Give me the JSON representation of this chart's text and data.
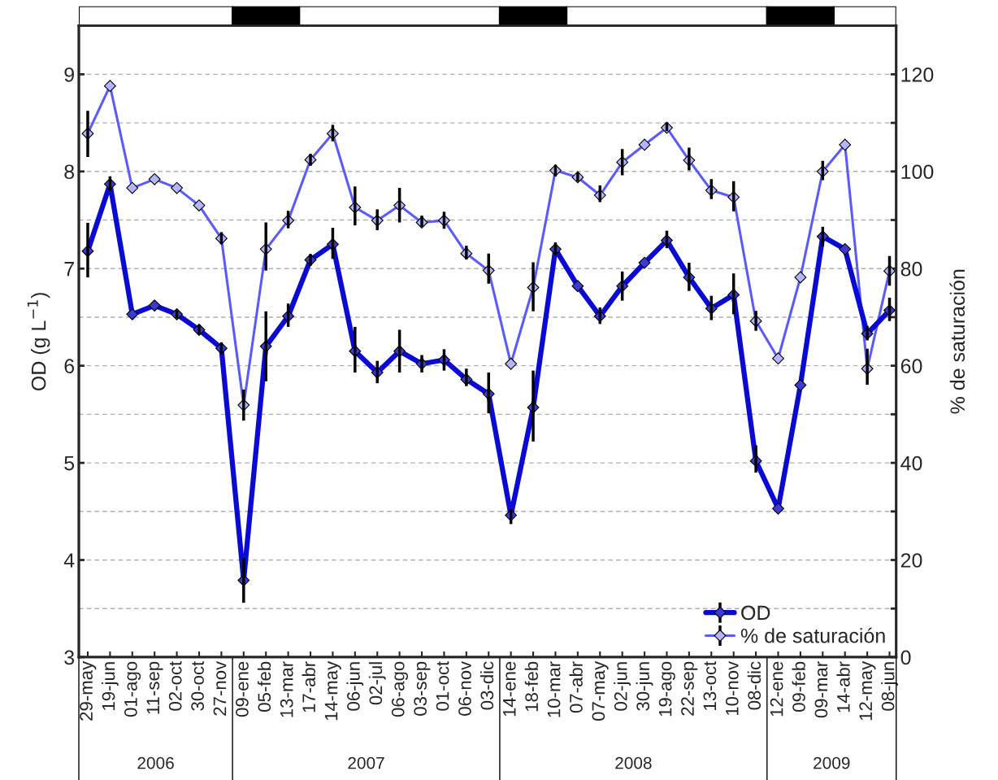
{
  "chart_data": {
    "type": "line",
    "xlabel": null,
    "ylabel": "OD (g L$^{−1}$)",
    "y2label": "% de saturación",
    "categories": [
      "29-may",
      "19-jun",
      "01-ago",
      "11-sep",
      "02-oct",
      "30-oct",
      "27-nov",
      "09-ene",
      "05-feb",
      "13-mar",
      "17-abr",
      "14-may",
      "06-jun",
      "02-jul",
      "06-ago",
      "03-sep",
      "01-oct",
      "06-nov",
      "03-dic",
      "14-ene",
      "18-feb",
      "10-mar",
      "07-abr",
      "07-may",
      "02-jun",
      "30-jun",
      "19-ago",
      "22-sep",
      "13-oct",
      "10-nov",
      "08-dic",
      "12-ene",
      "09-feb",
      "09-mar",
      "14-abr",
      "12-may",
      "08-jun"
    ],
    "series": [
      {
        "name": "OD",
        "color": "#0a0ad2",
        "axis": "y",
        "values": [
          7.18,
          7.87,
          6.53,
          6.62,
          6.53,
          6.37,
          6.18,
          3.79,
          6.2,
          6.51,
          7.09,
          7.25,
          6.15,
          5.93,
          6.15,
          6.02,
          6.06,
          5.86,
          5.71,
          4.46,
          5.57,
          7.2,
          6.82,
          6.51,
          6.82,
          7.06,
          7.29,
          6.91,
          6.59,
          6.73,
          5.02,
          4.53,
          5.8,
          7.33,
          7.2,
          6.33,
          6.57
        ],
        "errors": [
          [
            6.91,
            7.47
          ],
          [
            7.8,
            7.95
          ],
          null,
          null,
          [
            6.49,
            6.57
          ],
          [
            6.32,
            6.42
          ],
          [
            6.12,
            6.24
          ],
          [
            3.56,
            4.02
          ],
          [
            5.84,
            6.56
          ],
          [
            6.4,
            6.64
          ],
          [
            7.03,
            7.15
          ],
          [
            7.1,
            7.42
          ],
          [
            5.93,
            6.4
          ],
          [
            5.82,
            6.05
          ],
          [
            5.93,
            6.37
          ],
          [
            5.93,
            6.11
          ],
          [
            5.95,
            6.17
          ],
          [
            5.79,
            5.97
          ],
          [
            5.51,
            5.93
          ],
          [
            4.37,
            4.52
          ],
          [
            5.22,
            5.95
          ],
          [
            7.14,
            7.27
          ],
          null,
          [
            6.43,
            6.6
          ],
          [
            6.67,
            6.97
          ],
          null,
          [
            7.21,
            7.39
          ],
          [
            6.77,
            7.06
          ],
          [
            6.47,
            6.72
          ],
          [
            6.53,
            6.95
          ],
          [
            4.9,
            5.18
          ],
          null,
          null,
          [
            7.23,
            7.43
          ],
          null,
          [
            6.26,
            6.41
          ],
          [
            6.46,
            6.7
          ]
        ]
      },
      {
        "name": "% de saturación",
        "color": "#5a5aff",
        "axis": "y2",
        "values": [
          107.8,
          117.6,
          96.6,
          98.4,
          96.6,
          93.0,
          86.2,
          51.9,
          84.0,
          89.9,
          102.4,
          107.8,
          92.6,
          89.9,
          93.0,
          89.5,
          89.9,
          83.1,
          79.6,
          60.4,
          76.1,
          100.2,
          98.8,
          95.1,
          101.9,
          105.5,
          109.0,
          102.3,
          96.1,
          94.7,
          69.2,
          61.5,
          78.2,
          100.0,
          105.5,
          59.4,
          79.5
        ],
        "errors": [
          [
            103,
            112.5
          ],
          null,
          null,
          null,
          null,
          null,
          [
            85,
            87.5
          ],
          [
            48.7,
            55.1
          ],
          [
            79.6,
            89.5
          ],
          [
            88.3,
            91.9
          ],
          [
            101.2,
            103.6
          ],
          [
            106.2,
            109.6
          ],
          [
            88.9,
            96.9
          ],
          [
            87.9,
            92.2
          ],
          [
            89.5,
            96.6
          ],
          [
            88.6,
            90.9
          ],
          [
            88.2,
            91.7
          ],
          [
            81.9,
            84.7
          ],
          [
            76.9,
            83.1
          ],
          null,
          [
            71.2,
            81.3
          ],
          [
            99,
            101.4
          ],
          [
            97.9,
            99.8
          ],
          [
            93.7,
            97.1
          ],
          [
            99.2,
            104.6
          ],
          null,
          [
            108.3,
            110.1
          ],
          [
            100.2,
            104.9
          ],
          [
            94.3,
            98.4
          ],
          [
            91.8,
            98
          ],
          [
            67.2,
            71.3
          ],
          null,
          null,
          [
            98.2,
            102.2
          ],
          null,
          [
            56.1,
            63.5
          ],
          [
            76.5,
            82.6
          ]
        ]
      }
    ],
    "ylim": [
      3,
      9.5
    ],
    "yticks": [
      3,
      4,
      5,
      6,
      7,
      8,
      9
    ],
    "y2lim": [
      0,
      130
    ],
    "y2ticks": [
      0,
      {
        "value": 10,
        "label": null
      },
      20,
      {
        "value": 30,
        "label": null
      },
      40,
      {
        "value": 50,
        "label": null
      },
      60,
      {
        "value": 70,
        "label": null
      },
      80,
      {
        "value": 90,
        "label": null
      },
      100,
      {
        "value": 110,
        "label": null
      },
      120
    ],
    "grid": "y",
    "legend": "bottom right",
    "marker": "diamond",
    "line_style": "solid",
    "annotations": [
      "2006",
      "2007",
      "2008",
      "2009"
    ]
  }
}
